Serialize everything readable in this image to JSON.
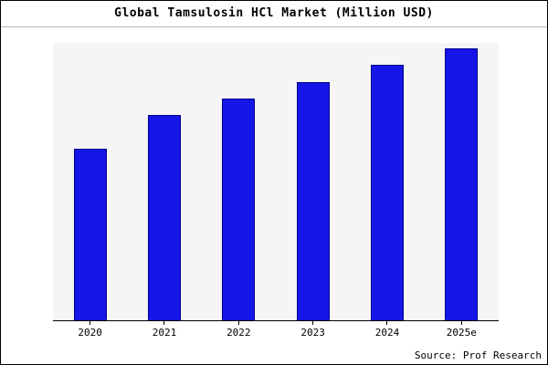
{
  "title": "Global Tamsulosin HCl Market (Million USD)",
  "source": "Source: Prof Research",
  "colors": {
    "bar_fill": "#1515e8",
    "bar_edge": "#00008b",
    "plot_background": "#f5f5f5",
    "axis": "#000000"
  },
  "chart_data": {
    "type": "bar",
    "title": "Global Tamsulosin HCl Market (Million USD)",
    "categories": [
      "2020",
      "2021",
      "2022",
      "2023",
      "2024",
      "2025e"
    ],
    "values": [
      62,
      74,
      80,
      86,
      92,
      98
    ],
    "xlabel": "",
    "ylabel": "",
    "ylim": [
      0,
      100
    ],
    "grid": false,
    "legend_position": "none",
    "annotations": [
      "Source: Prof Research"
    ]
  }
}
